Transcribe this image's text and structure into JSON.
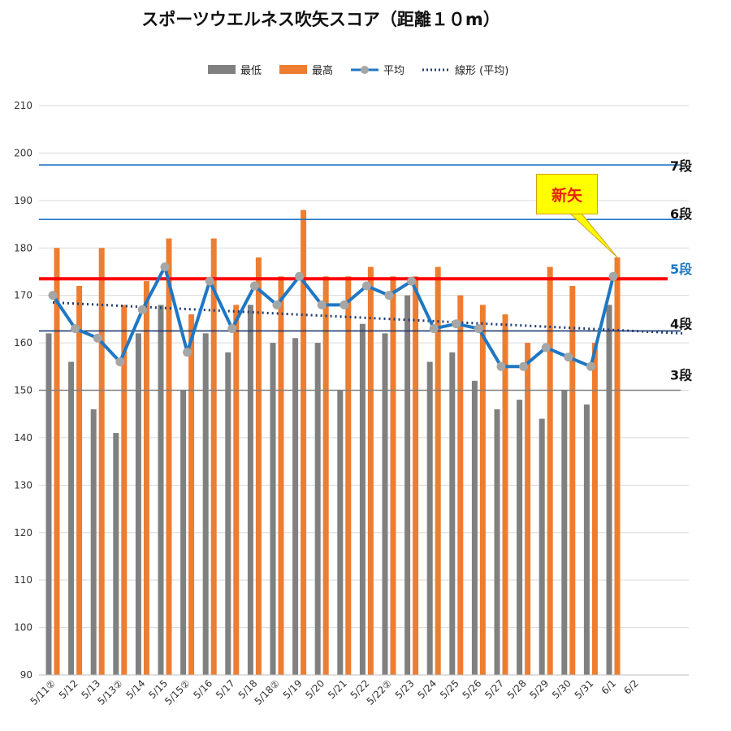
{
  "chart_data": {
    "type": "bar",
    "title": "スポーツウエルネス吹矢スコア（距離１０m）",
    "categories": [
      "5/11②",
      "5/12",
      "5/13",
      "5/13②",
      "5/14",
      "5/15",
      "5/15②",
      "5/16",
      "5/17",
      "5/18",
      "5/18②",
      "5/19",
      "5/20",
      "5/21",
      "5/22",
      "5/22②",
      "5/23",
      "5/24",
      "5/25",
      "5/26",
      "5/27",
      "5/28",
      "5/29",
      "5/30",
      "5/31",
      "6/1",
      "6/2"
    ],
    "ylim": [
      90,
      210
    ],
    "yticks": [
      90,
      100,
      110,
      120,
      130,
      140,
      150,
      160,
      170,
      180,
      190,
      200,
      210
    ],
    "grid": true,
    "legend_position": "top",
    "legend": [
      {
        "label": "最低",
        "color": "#808080",
        "kind": "bar"
      },
      {
        "label": "最高",
        "color": "#ed7d31",
        "kind": "bar"
      },
      {
        "label": "平均",
        "color": "#1f77c4",
        "kind": "line-marker"
      },
      {
        "label": "線形 (平均)",
        "color": "#1f3b73",
        "kind": "dotted"
      }
    ],
    "series": [
      {
        "name": "最低",
        "type": "bar",
        "color": "#808080",
        "values": [
          162,
          156,
          146,
          141,
          162,
          168,
          150,
          162,
          158,
          168,
          160,
          161,
          160,
          150,
          164,
          162,
          170,
          156,
          158,
          152,
          146,
          148,
          144,
          150,
          147,
          168,
          null
        ]
      },
      {
        "name": "最高",
        "type": "bar",
        "color": "#ed7d31",
        "values": [
          180,
          172,
          180,
          168,
          173,
          182,
          166,
          182,
          168,
          178,
          174,
          188,
          174,
          174,
          176,
          174,
          174,
          176,
          170,
          168,
          166,
          160,
          176,
          172,
          160,
          178,
          null
        ]
      },
      {
        "name": "平均",
        "type": "line",
        "color": "#1f77c4",
        "marker_color": "#a6a6a6",
        "values": [
          170,
          163,
          161,
          156,
          167,
          176,
          158,
          173,
          163,
          172,
          168,
          174,
          168,
          168,
          172,
          170,
          173,
          163,
          164,
          163,
          155,
          155,
          159,
          157,
          155,
          174,
          null
        ]
      },
      {
        "name": "線形 (平均)",
        "type": "trendline",
        "color": "#1f3b73",
        "from": 168.5,
        "to": 162
      }
    ],
    "reference_lines": [
      {
        "label": "7段",
        "value": 197.5,
        "color": "#1f77c4",
        "label_color": "#111111"
      },
      {
        "label": "6段",
        "value": 186,
        "color": "#1f77c4",
        "label_color": "#111111"
      },
      {
        "label": "5段",
        "value": 173.5,
        "color": "#ff0000",
        "label_color": "#1f77c4",
        "thick": true
      },
      {
        "label": "4段",
        "value": 162.5,
        "color": "#1f3b73",
        "label_color": "#111111"
      },
      {
        "label": "3段",
        "value": 150,
        "color": "#808080",
        "label_color": "#111111"
      }
    ],
    "annotation": {
      "text": "新矢",
      "target_category": "6/1",
      "target_value": 178
    }
  }
}
